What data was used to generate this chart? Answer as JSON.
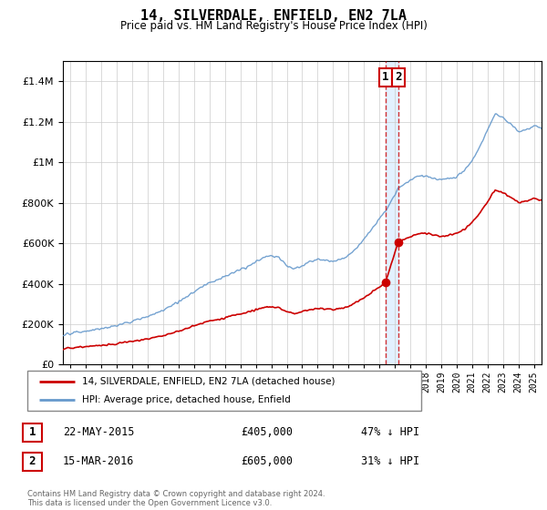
{
  "title": "14, SILVERDALE, ENFIELD, EN2 7LA",
  "subtitle": "Price paid vs. HM Land Registry's House Price Index (HPI)",
  "ylim_max": 1500000,
  "xlim_start": 1994.5,
  "xlim_end": 2025.5,
  "sale1_date": 2015.39,
  "sale1_price": 405000,
  "sale2_date": 2016.21,
  "sale2_price": 605000,
  "red_line_color": "#cc0000",
  "blue_line_color": "#6699cc",
  "blue_shade_color": "#ddeeff",
  "dashed_vline_color": "#cc0000",
  "legend_label_red": "14, SILVERDALE, ENFIELD, EN2 7LA (detached house)",
  "legend_label_blue": "HPI: Average price, detached house, Enfield",
  "table_row1": [
    "1",
    "22-MAY-2015",
    "£405,000",
    "47% ↓ HPI"
  ],
  "table_row2": [
    "2",
    "15-MAR-2016",
    "£605,000",
    "31% ↓ HPI"
  ],
  "footnote": "Contains HM Land Registry data © Crown copyright and database right 2024.\nThis data is licensed under the Open Government Licence v3.0.",
  "grid_color": "#cccccc",
  "hpi_1995": 155000,
  "hpi_2015": 760000,
  "hpi_2016": 870000,
  "hpi_2024": 1150000,
  "red_1995": 65000,
  "red_2015": 405000,
  "red_2016": 605000,
  "red_2024": 720000
}
